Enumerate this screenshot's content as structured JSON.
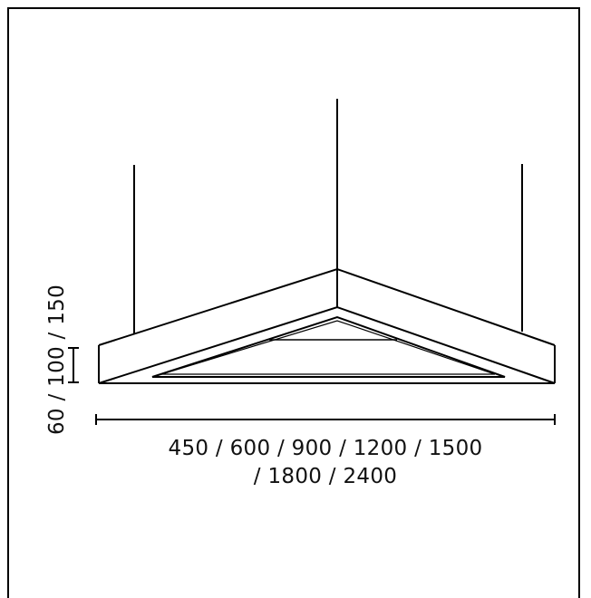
{
  "dimensions": {
    "width_line1": "450 / 600 / 900 / 1200 / 1500",
    "width_line2": "/ 1800 / 2400",
    "height": "60 / 100 / 150"
  },
  "colors": {
    "stroke": "#000000",
    "background": "#ffffff"
  }
}
